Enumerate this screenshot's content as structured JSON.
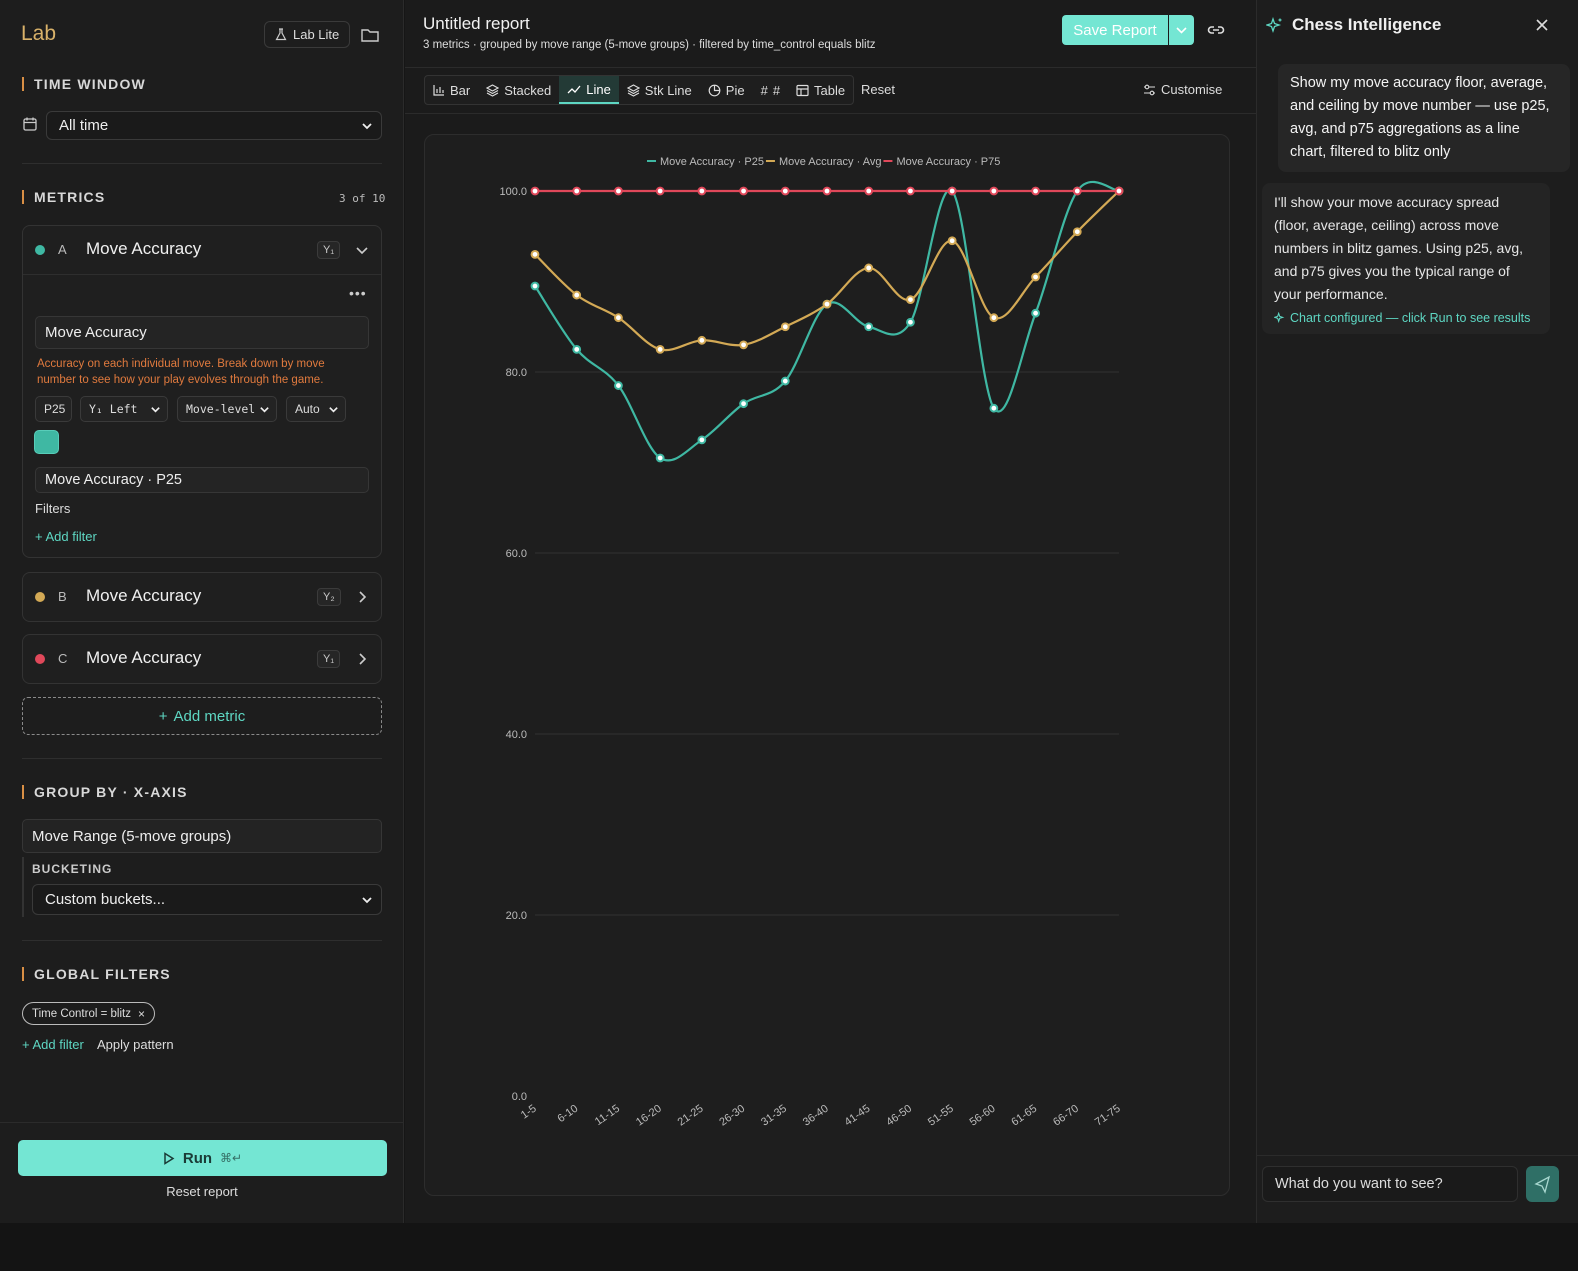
{
  "sidebar": {
    "brand": "Lab",
    "lab_lite_label": "Lab Lite",
    "time_window": {
      "title": "TIME WINDOW",
      "value": "All time"
    },
    "metrics": {
      "title": "METRICS",
      "count": "3 of 10",
      "items": [
        {
          "letter": "A",
          "name": "Move Accuracy",
          "axis": "Y₁",
          "color": "#3fb8a3",
          "expanded": true
        },
        {
          "letter": "B",
          "name": "Move Accuracy",
          "axis": "Y₂",
          "color": "#d3a955",
          "expanded": false
        },
        {
          "letter": "C",
          "name": "Move Accuracy",
          "axis": "Y₁",
          "color": "#e0485a",
          "expanded": false
        }
      ],
      "expanded_detail": {
        "field_name": "Move Accuracy",
        "description": "Accuracy on each individual move. Break down by move number to see how your play evolves through the game.",
        "agg": "P25",
        "axis_select": "Y₁ Left",
        "level_select": "Move-level",
        "scale_select": "Auto",
        "series_label": "Move Accuracy · P25",
        "filters_label": "Filters",
        "add_filter": "+ Add filter"
      },
      "add_metric": "Add metric"
    },
    "group_by": {
      "title": "GROUP BY · X-AXIS",
      "value": "Move Range (5-move groups)",
      "bucketing_label": "BUCKETING",
      "bucketing_value": "Custom buckets..."
    },
    "global_filters": {
      "title": "GLOBAL FILTERS",
      "pill": "Time Control = blitz",
      "add_filter": "+ Add filter",
      "apply_pattern": "Apply pattern"
    },
    "run_label": "Run",
    "run_shortcut": "⌘↵",
    "reset_report": "Reset report"
  },
  "report": {
    "title": "Untitled report",
    "subtitle": "3 metrics · grouped by move range (5-move groups) · filtered by time_control equals blitz",
    "save_label": "Save Report",
    "tabs": [
      {
        "label": "Bar",
        "icon": "bar-chart-icon"
      },
      {
        "label": "Stacked",
        "icon": "layers-icon"
      },
      {
        "label": "Line",
        "icon": "line-chart-icon",
        "active": true
      },
      {
        "label": "Stk Line",
        "icon": "layers-icon"
      },
      {
        "label": "Pie",
        "icon": "pie-chart-icon"
      },
      {
        "label": "#",
        "icon": "hash-icon"
      },
      {
        "label": "Table",
        "icon": "table-icon"
      }
    ],
    "reset_label": "Reset",
    "customise_label": "Customise"
  },
  "chart_data": {
    "type": "line",
    "title": "",
    "xlabel": "",
    "ylabel": "",
    "ylim": [
      0,
      100
    ],
    "yticks": [
      "0.0",
      "20.0",
      "40.0",
      "60.0",
      "80.0",
      "100.0"
    ],
    "grid": true,
    "legend": "top-center",
    "categories": [
      "1-5",
      "6-10",
      "11-15",
      "16-20",
      "21-25",
      "26-30",
      "31-35",
      "36-40",
      "41-45",
      "46-50",
      "51-55",
      "56-60",
      "61-65",
      "66-70",
      "71-75"
    ],
    "series": [
      {
        "name": "Move Accuracy · P25",
        "color": "#3fb8a3",
        "values": [
          89.5,
          82.5,
          78.5,
          70.5,
          72.5,
          76.5,
          79,
          87.5,
          85,
          85.5,
          100,
          76,
          86.5,
          100,
          100
        ]
      },
      {
        "name": "Move Accuracy · Avg",
        "color": "#d3a955",
        "values": [
          93,
          88.5,
          86,
          82.5,
          83.5,
          83,
          85,
          87.5,
          91.5,
          88,
          94.5,
          86,
          90.5,
          95.5,
          100
        ]
      },
      {
        "name": "Move Accuracy · P75",
        "color": "#e0485a",
        "values": [
          100,
          100,
          100,
          100,
          100,
          100,
          100,
          100,
          100,
          100,
          100,
          100,
          100,
          100,
          100
        ]
      }
    ]
  },
  "assistant": {
    "title": "Chess Intelligence",
    "user_message": "Show my move accuracy floor, average, and ceiling by move number — use p25, avg, and p75 aggregations as a line chart, filtered to blitz only",
    "bot_message": "I'll show your move accuracy spread (floor, average, ceiling) across move numbers in blitz games. Using p25, avg, and p75 gives you the typical range of your performance.",
    "bot_note": "Chart configured — click Run to see results",
    "input_placeholder": "What do you want to see?"
  }
}
